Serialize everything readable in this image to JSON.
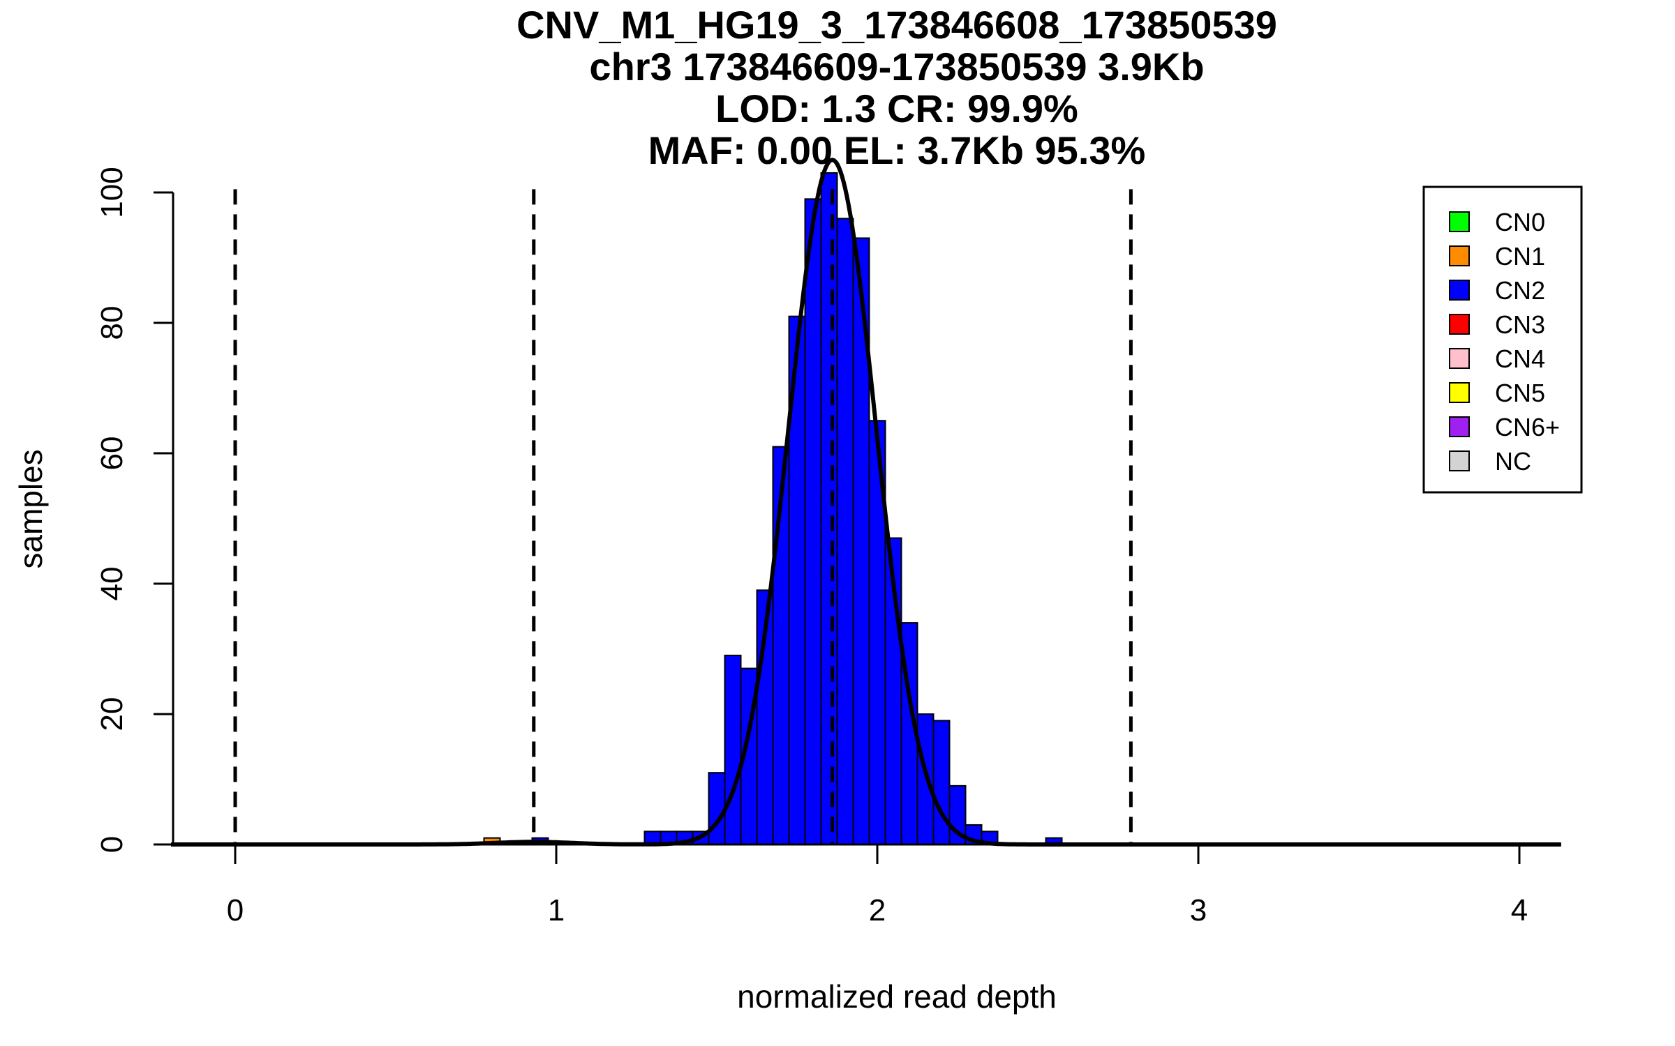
{
  "chart_data": {
    "type": "bar",
    "title_lines": [
      "CNV_M1_HG19_3_173846608_173850539",
      "chr3 173846609-173850539 3.9Kb",
      "LOD: 1.3 CR: 99.9%",
      "MAF: 0.00 EL: 3.7Kb 95.3%"
    ],
    "xlabel": "normalized read depth",
    "ylabel": "samples",
    "xlim": [
      -0.2,
      4.13
    ],
    "ylim": [
      0,
      103
    ],
    "x_ticks": [
      0,
      1,
      2,
      3,
      4
    ],
    "y_ticks": [
      0,
      20,
      40,
      60,
      80,
      100
    ],
    "bin_width": 0.05,
    "series": [
      {
        "name": "CN1",
        "color": "#FF8C00",
        "bins": [
          {
            "x0": 0.775,
            "x1": 0.825,
            "value": 1
          }
        ]
      },
      {
        "name": "CN2",
        "color": "#0000FF",
        "bins": [
          {
            "x0": 0.925,
            "x1": 0.975,
            "value": 1
          },
          {
            "x0": 1.275,
            "x1": 1.325,
            "value": 2
          },
          {
            "x0": 1.325,
            "x1": 1.375,
            "value": 2
          },
          {
            "x0": 1.375,
            "x1": 1.425,
            "value": 2
          },
          {
            "x0": 1.425,
            "x1": 1.475,
            "value": 2
          },
          {
            "x0": 1.475,
            "x1": 1.525,
            "value": 11
          },
          {
            "x0": 1.525,
            "x1": 1.575,
            "value": 29
          },
          {
            "x0": 1.575,
            "x1": 1.625,
            "value": 27
          },
          {
            "x0": 1.625,
            "x1": 1.675,
            "value": 39
          },
          {
            "x0": 1.675,
            "x1": 1.725,
            "value": 61
          },
          {
            "x0": 1.725,
            "x1": 1.775,
            "value": 81
          },
          {
            "x0": 1.775,
            "x1": 1.825,
            "value": 99
          },
          {
            "x0": 1.825,
            "x1": 1.875,
            "value": 103
          },
          {
            "x0": 1.875,
            "x1": 1.925,
            "value": 96
          },
          {
            "x0": 1.925,
            "x1": 1.975,
            "value": 93
          },
          {
            "x0": 1.975,
            "x1": 2.025,
            "value": 65
          },
          {
            "x0": 2.025,
            "x1": 2.075,
            "value": 47
          },
          {
            "x0": 2.075,
            "x1": 2.125,
            "value": 34
          },
          {
            "x0": 2.125,
            "x1": 2.175,
            "value": 20
          },
          {
            "x0": 2.175,
            "x1": 2.225,
            "value": 19
          },
          {
            "x0": 2.225,
            "x1": 2.275,
            "value": 9
          },
          {
            "x0": 2.275,
            "x1": 2.325,
            "value": 3
          },
          {
            "x0": 2.325,
            "x1": 2.375,
            "value": 2
          },
          {
            "x0": 2.525,
            "x1": 2.575,
            "value": 1
          }
        ]
      }
    ],
    "zero_segments": [
      [
        -0.2,
        0.2
      ],
      [
        0.48,
        0.775
      ],
      [
        0.975,
        1.275
      ],
      [
        2.375,
        2.525
      ],
      [
        2.575,
        3.58
      ],
      [
        3.58,
        4.13
      ]
    ],
    "dashed_lines": [
      0,
      0.93,
      1.86,
      2.79
    ],
    "fit_curve": {
      "mean": 1.86,
      "sd": 0.137,
      "peak": 105,
      "minor_mean": 0.93,
      "minor_sd": 0.12,
      "minor_peak": 0.4
    },
    "legend": {
      "position": "top-right",
      "items": [
        {
          "label": "CN0",
          "color": "#00FF00"
        },
        {
          "label": "CN1",
          "color": "#FF8C00"
        },
        {
          "label": "CN2",
          "color": "#0000FF"
        },
        {
          "label": "CN3",
          "color": "#FF0000"
        },
        {
          "label": "CN4",
          "color": "#FFC0CB"
        },
        {
          "label": "CN5",
          "color": "#FFFF00"
        },
        {
          "label": "CN6+",
          "color": "#A020F0"
        },
        {
          "label": "NC",
          "color": "#D3D3D3"
        }
      ]
    }
  }
}
